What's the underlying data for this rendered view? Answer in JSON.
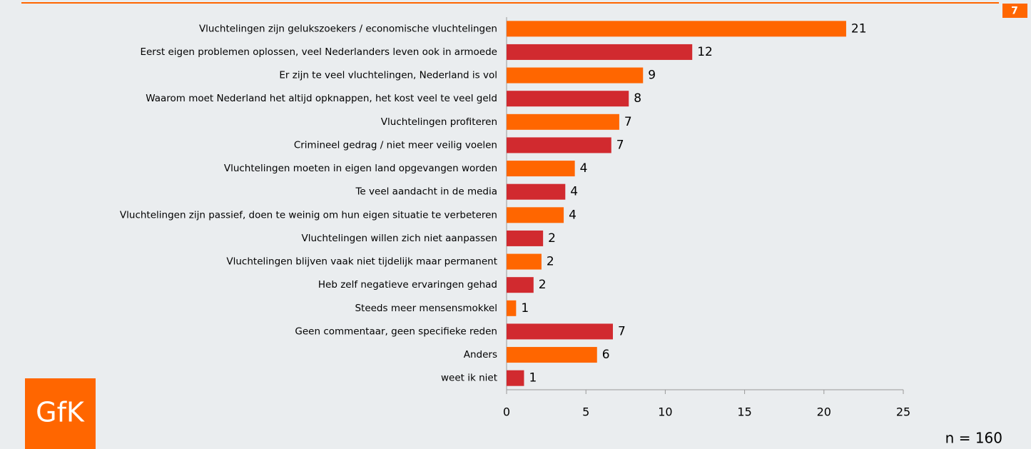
{
  "page_number": "7",
  "logo": "GfK",
  "note": "n = 160",
  "chart_data": {
    "type": "bar",
    "orientation": "horizontal",
    "categories": [
      "Vluchtelingen zijn gelukszoekers / economische vluchtelingen",
      "Eerst eigen problemen oplossen, veel Nederlanders leven ook in armoede",
      "Er zijn te veel vluchtelingen, Nederland is vol",
      "Waarom moet Nederland het altijd opknappen, het kost veel te veel geld",
      "Vluchtelingen profiteren",
      "Crimineel gedrag / niet meer veilig voelen",
      "Vluchtelingen moeten in eigen land opgevangen worden",
      "Te veel aandacht in de media",
      "Vluchtelingen zijn passief, doen te weinig om hun eigen situatie te verbeteren",
      "Vluchtelingen willen zich niet aanpassen",
      "Vluchtelingen blijven vaak niet tijdelijk maar permanent",
      "Heb zelf negatieve ervaringen gehad",
      "Steeds meer mensensmokkel",
      "Geen commentaar, geen specifieke reden",
      "Anders",
      "weet ik niet"
    ],
    "values": [
      21.4,
      11.7,
      8.6,
      7.7,
      7.1,
      6.6,
      4.3,
      3.7,
      3.6,
      2.3,
      2.2,
      1.7,
      0.6,
      6.7,
      5.7,
      1.1
    ],
    "value_labels": [
      "21",
      "12",
      "9",
      "8",
      "7",
      "7",
      "4",
      "4",
      "4",
      "2",
      "2",
      "2",
      "1",
      "7",
      "6",
      "1"
    ],
    "colors": [
      "#ff6600",
      "#d12a2f",
      "#ff6600",
      "#d12a2f",
      "#ff6600",
      "#d12a2f",
      "#ff6600",
      "#d12a2f",
      "#ff6600",
      "#d12a2f",
      "#ff6600",
      "#d12a2f",
      "#ff6600",
      "#d12a2f",
      "#ff6600",
      "#d12a2f"
    ],
    "xlim": [
      0,
      25
    ],
    "xticks": [
      0,
      5,
      10,
      15,
      20,
      25
    ]
  }
}
